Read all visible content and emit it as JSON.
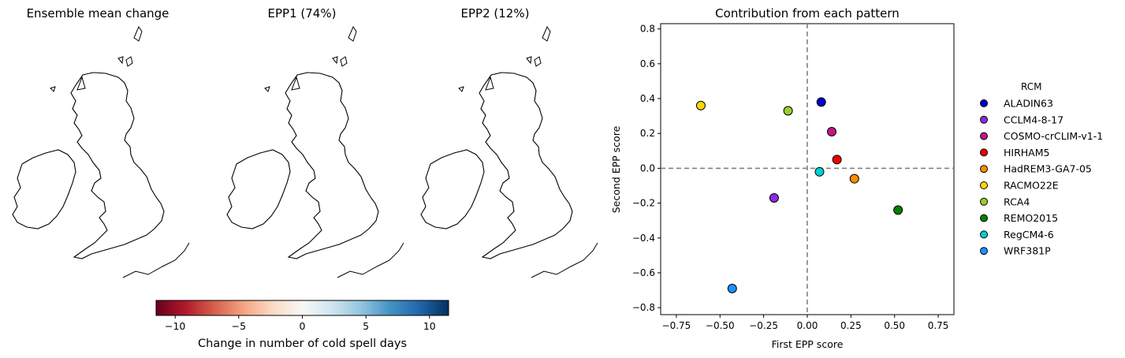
{
  "maps": [
    {
      "title": "Ensemble mean change",
      "scheme": "red"
    },
    {
      "title": "EPP1 (74%)",
      "scheme": "blue"
    },
    {
      "title": "EPP2 (12%)",
      "scheme": "mixed"
    }
  ],
  "colorbar": {
    "label": "Change in number of cold spell days",
    "min": -11.5,
    "max": 11.5,
    "ticks": [
      -10,
      -5,
      0,
      5,
      10
    ],
    "tick_labels": [
      "−10",
      "−5",
      "0",
      "5",
      "10"
    ],
    "colors": [
      "#67001f",
      "#b2182b",
      "#d6604d",
      "#f4a582",
      "#fddbc7",
      "#f7f7f7",
      "#d1e5f0",
      "#92c5de",
      "#4393c3",
      "#2166ac",
      "#053061"
    ]
  },
  "chart_data": {
    "type": "scatter",
    "title": "Contribution from each pattern",
    "xlabel": "First EPP score",
    "ylabel": "Second EPP score",
    "xlim": [
      -0.84,
      0.84
    ],
    "ylim": [
      -0.84,
      0.83
    ],
    "xticks": [
      -0.75,
      -0.5,
      -0.25,
      0.0,
      0.25,
      0.5,
      0.75
    ],
    "xtick_labels": [
      "−0.75",
      "−0.50",
      "−0.25",
      "0.00",
      "0.25",
      "0.50",
      "0.75"
    ],
    "yticks": [
      -0.8,
      -0.6,
      -0.4,
      -0.2,
      0.0,
      0.2,
      0.4,
      0.6,
      0.8
    ],
    "ytick_labels": [
      "−0.8",
      "−0.6",
      "−0.4",
      "−0.2",
      "0.0",
      "0.2",
      "0.4",
      "0.6",
      "0.8"
    ],
    "grid": false,
    "reference_lines": {
      "x": 0,
      "y": 0,
      "style": "dashed"
    },
    "legend": {
      "title": "RCM",
      "placement": "outside-right"
    },
    "series": [
      {
        "name": "ALADIN63",
        "x": 0.08,
        "y": 0.38,
        "color": "#0000cd"
      },
      {
        "name": "CCLM4-8-17",
        "x": -0.19,
        "y": -0.17,
        "color": "#8a2be2"
      },
      {
        "name": "COSMO-crCLIM-v1-1",
        "x": 0.14,
        "y": 0.21,
        "color": "#c71585"
      },
      {
        "name": "HIRHAM5",
        "x": 0.17,
        "y": 0.05,
        "color": "#ee0000"
      },
      {
        "name": "HadREM3-GA7-05",
        "x": 0.27,
        "y": -0.06,
        "color": "#ff8c00"
      },
      {
        "name": "RACMO22E",
        "x": -0.61,
        "y": 0.36,
        "color": "#ffd700"
      },
      {
        "name": "RCA4",
        "x": -0.11,
        "y": 0.33,
        "color": "#9acd32"
      },
      {
        "name": "REMO2015",
        "x": 0.52,
        "y": -0.24,
        "color": "#008000"
      },
      {
        "name": "RegCM4-6",
        "x": 0.07,
        "y": -0.02,
        "color": "#00ced1"
      },
      {
        "name": "WRF381P",
        "x": -0.43,
        "y": -0.69,
        "color": "#1e90ff"
      }
    ]
  }
}
